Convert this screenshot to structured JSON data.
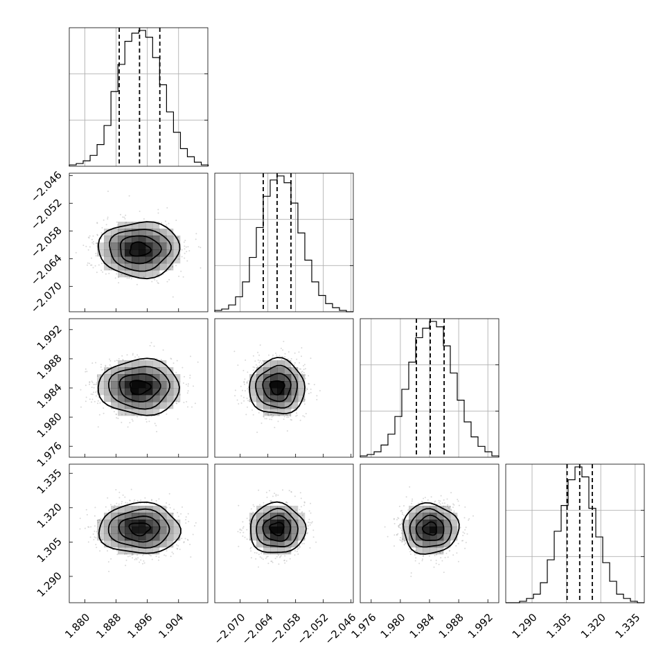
{
  "chart_data": {
    "type": "corner",
    "title": "",
    "grid": true,
    "parameters": [
      {
        "index": 0,
        "mean": 1.894,
        "std": 0.0052,
        "range": [
          1.876,
          1.9115
        ],
        "ticks": [
          "1.880",
          "1.888",
          "1.896",
          "1.904"
        ],
        "quantiles": [
          1.8888,
          1.894,
          1.8992
        ]
      },
      {
        "index": 1,
        "mean": -2.062,
        "std": 0.003,
        "range": [
          -2.0755,
          -2.0455
        ],
        "ticks": [
          "−2.070",
          "−2.064",
          "−2.058",
          "−2.052",
          "−2.046"
        ],
        "quantiles": [
          -2.065,
          -2.062,
          -2.059
        ]
      },
      {
        "index": 2,
        "mean": 1.9841,
        "std": 0.0019,
        "range": [
          1.9745,
          1.9935
        ],
        "ticks": [
          "1.976",
          "1.980",
          "1.984",
          "1.988",
          "1.992"
        ],
        "quantiles": [
          1.9822,
          1.9841,
          1.986
        ]
      },
      {
        "index": 3,
        "mean": 1.3108,
        "std": 0.0055,
        "range": [
          1.2785,
          1.339
        ],
        "ticks": [
          "1.290",
          "1.305",
          "1.320",
          "1.335"
        ],
        "quantiles": [
          1.3053,
          1.3108,
          1.3163
        ]
      }
    ],
    "histograms": [
      {
        "param": 0,
        "bin_edges_start": 1.876,
        "bin_width": 0.00178,
        "counts": [
          1,
          2,
          4,
          8,
          16,
          30,
          55,
          75,
          92,
          98,
          100,
          95,
          80,
          60,
          40,
          25,
          13,
          7,
          3,
          1
        ]
      },
      {
        "param": 1,
        "bin_edges_start": -2.0755,
        "bin_width": 0.0015,
        "counts": [
          1,
          2,
          5,
          11,
          22,
          40,
          62,
          85,
          97,
          100,
          95,
          80,
          58,
          38,
          22,
          12,
          6,
          3,
          1,
          0
        ]
      },
      {
        "param": 2,
        "bin_edges_start": 1.9745,
        "bin_width": 0.00095,
        "counts": [
          1,
          2,
          4,
          9,
          17,
          30,
          50,
          70,
          88,
          95,
          100,
          96,
          82,
          62,
          42,
          26,
          15,
          8,
          4,
          1
        ]
      },
      {
        "param": 3,
        "bin_edges_start": 1.2785,
        "bin_width": 0.003025,
        "counts": [
          0,
          0,
          1,
          3,
          6,
          14,
          30,
          50,
          68,
          86,
          95,
          88,
          66,
          46,
          28,
          15,
          6,
          3,
          1,
          0
        ]
      }
    ],
    "correlation": "none (circular contours)",
    "scatter_color": "#b8b8b8",
    "density_color": "#000000"
  }
}
